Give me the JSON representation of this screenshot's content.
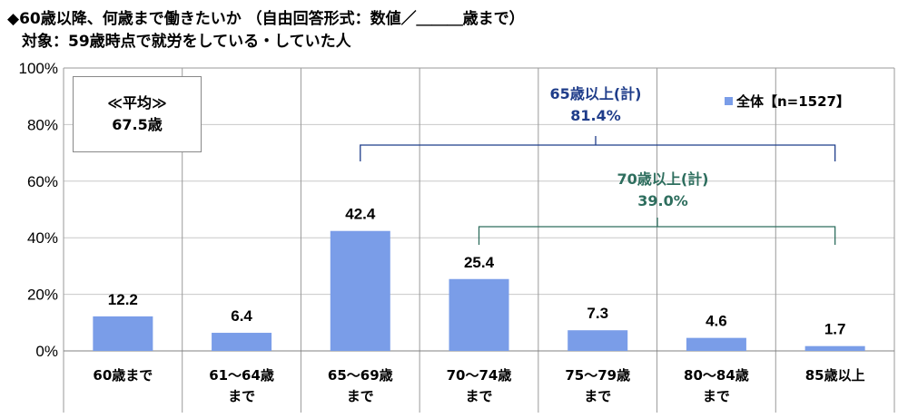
{
  "title_line1": "◆60歳以降、何歳まで働きたいか （自由回答形式：数値／＿＿＿歳まで）",
  "title_line2": "対象：59歳時点で就労をしている・していた人",
  "average_box": {
    "label": "≪平均≫",
    "value": "67.5歳"
  },
  "legend": {
    "label": "全体【n=1527】",
    "color": "#7a9de8"
  },
  "annotations": {
    "over65": {
      "label": "65歳以上(計)",
      "value": "81.4%",
      "color": "#1f3d8a"
    },
    "over70": {
      "label": "70歳以上(計)",
      "value": "39.0%",
      "color": "#2e6e5e"
    }
  },
  "chart_data": {
    "type": "bar",
    "categories": [
      [
        "60歳まで"
      ],
      [
        "61～64歳",
        "まで"
      ],
      [
        "65～69歳",
        "まで"
      ],
      [
        "70～74歳",
        "まで"
      ],
      [
        "75～79歳",
        "まで"
      ],
      [
        "80～84歳",
        "まで"
      ],
      [
        "85歳以上"
      ]
    ],
    "series": [
      {
        "name": "全体【n=1527】",
        "values": [
          12.2,
          6.4,
          42.4,
          25.4,
          7.3,
          4.6,
          1.7
        ]
      }
    ],
    "value_labels": [
      "12.2",
      "6.4",
      "42.4",
      "25.4",
      "7.3",
      "4.6",
      "1.7"
    ],
    "ylim": [
      0,
      100
    ],
    "yticks": [
      "0%",
      "20%",
      "40%",
      "60%",
      "80%",
      "100%"
    ],
    "grid": true,
    "bar_color": "#7a9de8"
  }
}
